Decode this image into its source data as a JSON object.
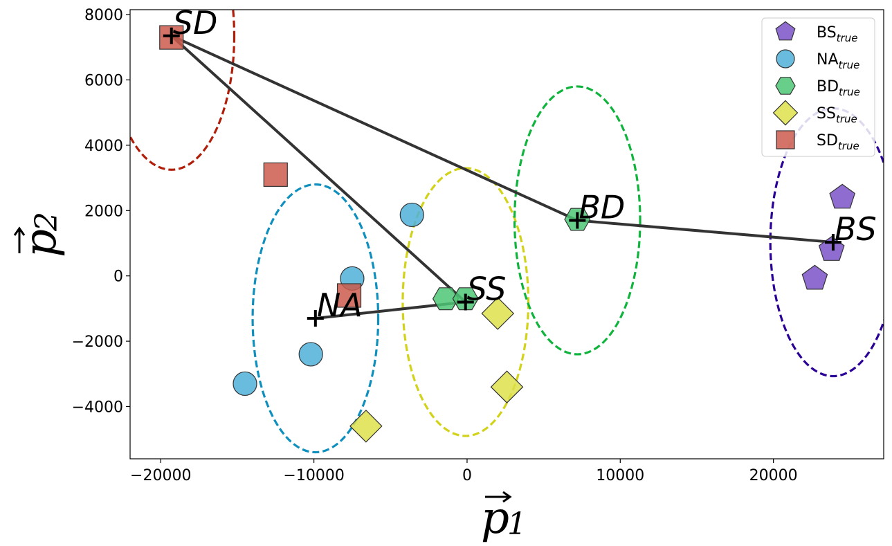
{
  "chart_data": {
    "type": "scatter",
    "xlim": [
      -22000,
      27200
    ],
    "ylim": [
      -5600,
      8150
    ],
    "xticks": [
      {
        "value": -20000,
        "label": "−20000"
      },
      {
        "value": -10000,
        "label": "−10000"
      },
      {
        "value": 0,
        "label": "0"
      },
      {
        "value": 10000,
        "label": "10000"
      },
      {
        "value": 20000,
        "label": "20000"
      }
    ],
    "yticks": [
      {
        "value": -4000,
        "label": "−4000"
      },
      {
        "value": -2000,
        "label": "−2000"
      },
      {
        "value": 0,
        "label": "0"
      },
      {
        "value": 2000,
        "label": "2000"
      },
      {
        "value": 4000,
        "label": "4000"
      },
      {
        "value": 6000,
        "label": "6000"
      },
      {
        "value": 8000,
        "label": "8000"
      }
    ],
    "xlabel": {
      "main": "p",
      "sub": "1"
    },
    "ylabel": {
      "main": "p",
      "sub": "2"
    },
    "grid": false,
    "legend_position": "top-right",
    "series": [
      {
        "key": "BS",
        "name": "BS",
        "name_sub": "true",
        "marker": "pentagon",
        "color": "#7b52c8",
        "points": [
          [
            24500,
            2400
          ],
          [
            23800,
            800
          ],
          [
            22700,
            -80
          ]
        ]
      },
      {
        "key": "NA",
        "name": "NA",
        "name_sub": "true",
        "marker": "circle",
        "color": "#4fb0d8",
        "points": [
          [
            -3600,
            1870
          ],
          [
            -7500,
            -80
          ],
          [
            -10200,
            -2400
          ],
          [
            -14500,
            -3300
          ]
        ]
      },
      {
        "key": "BD",
        "name": "BD",
        "name_sub": "true",
        "marker": "hexagon",
        "color": "#4cc774",
        "points": [
          [
            7200,
            1730
          ],
          [
            -1400,
            -700
          ],
          [
            -100,
            -700
          ]
        ]
      },
      {
        "key": "SS",
        "name": "SS",
        "name_sub": "true",
        "marker": "diamond",
        "color": "#dde14a",
        "points": [
          [
            2000,
            -1150
          ],
          [
            2600,
            -3400
          ],
          [
            -6600,
            -4600
          ]
        ]
      },
      {
        "key": "SD",
        "name": "SD",
        "name_sub": "true",
        "marker": "square",
        "color": "#cd5a4c",
        "points": [
          [
            -19300,
            7300
          ],
          [
            -12500,
            3100
          ],
          [
            -7700,
            -600
          ]
        ]
      }
    ],
    "centroids": [
      {
        "label": "SD",
        "x": -19300,
        "y": 7350,
        "radius": 4100,
        "color": "#b01e0a"
      },
      {
        "label": "NA",
        "x": -9900,
        "y": -1300,
        "radius": 4100,
        "color": "#0f8fbe"
      },
      {
        "label": "SS",
        "x": -100,
        "y": -800,
        "radius": 4100,
        "color": "#d2d21a"
      },
      {
        "label": "BD",
        "x": 7200,
        "y": 1700,
        "radius": 4100,
        "color": "#10b43c"
      },
      {
        "label": "BS",
        "x": 23900,
        "y": 1030,
        "radius": 4100,
        "color": "#2a0096"
      }
    ],
    "edges": [
      [
        "SD",
        "BD"
      ],
      [
        "BD",
        "BS"
      ],
      [
        "SD",
        "SS"
      ],
      [
        "SS",
        "NA"
      ]
    ]
  }
}
